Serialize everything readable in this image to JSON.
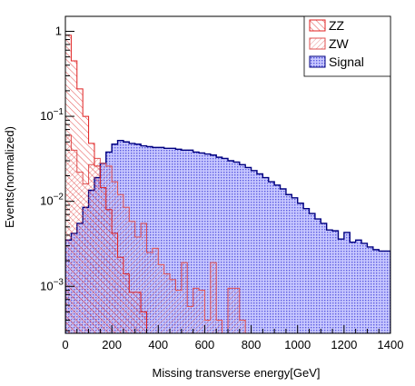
{
  "chart_data": {
    "type": "histogram",
    "title": "",
    "xlabel": "Missing transverse energy[GeV]",
    "ylabel": "Events(normalized)",
    "xlim": [
      0,
      1400
    ],
    "ylim": [
      0.00028,
      1.5
    ],
    "yscale": "log",
    "bin_width": 25,
    "bin_start": 0,
    "x_ticks": [
      0,
      200,
      400,
      600,
      800,
      1000,
      1200,
      1400
    ],
    "x_tick_labels": [
      "0",
      "200",
      "400",
      "600",
      "800",
      "1000",
      "1200",
      "1400"
    ],
    "y_ticks": [
      0.001,
      0.01,
      0.1,
      1
    ],
    "y_tick_labels": [
      {
        "base": "10",
        "exp": "−3"
      },
      {
        "base": "10",
        "exp": "−2"
      },
      {
        "base": "10",
        "exp": "−1"
      },
      {
        "base": "1",
        "exp": ""
      }
    ],
    "legend_position": "top-right",
    "series": [
      {
        "name": "Signal",
        "color": "#000080",
        "fill": "#7070ee",
        "hatch": "dots",
        "values": [
          0.0035,
          0.0042,
          0.0055,
          0.0085,
          0.0135,
          0.019,
          0.028,
          0.038,
          0.047,
          0.052,
          0.05,
          0.048,
          0.047,
          0.045,
          0.044,
          0.043,
          0.043,
          0.042,
          0.042,
          0.041,
          0.04,
          0.04,
          0.038,
          0.037,
          0.036,
          0.035,
          0.033,
          0.032,
          0.03,
          0.029,
          0.027,
          0.025,
          0.023,
          0.021,
          0.019,
          0.017,
          0.0155,
          0.014,
          0.012,
          0.011,
          0.0095,
          0.0082,
          0.0072,
          0.0062,
          0.0055,
          0.0046,
          0.0045,
          0.0036,
          0.0043,
          0.0033,
          0.0035,
          0.0032,
          0.0029,
          0.0027,
          0.0026,
          0.0026
        ]
      },
      {
        "name": "ZW",
        "color": "#e05050",
        "fill": "#e05050",
        "hatch": "diagonal-fine",
        "values": [
          0.06,
          0.04,
          0.022,
          0.016,
          0.027,
          0.032,
          0.028,
          0.026,
          0.017,
          0.012,
          0.0085,
          0.0058,
          0.0038,
          0.0055,
          0.0025,
          0.0028,
          0.0018,
          0.0014,
          0.0012,
          0.0009,
          0.0019,
          0.00058,
          0.00095,
          0.0009,
          0.0004,
          0.0019,
          0.0004,
          0.0002,
          0.00095,
          0.00095,
          0.0004,
          0.0002,
          0.0002,
          0.0002,
          0.0002,
          0.0002,
          0.0002,
          0.0002,
          0.0002,
          0.0002,
          0.0002,
          0.0002,
          0.0002,
          0.0002,
          0.0002,
          0.0002,
          0.0002,
          0.0002,
          0.0002,
          0.0002,
          0.0002,
          0.0002,
          0.0002,
          0.0002,
          0.0002,
          0.0002
        ]
      },
      {
        "name": "ZZ",
        "color": "#e02020",
        "fill": "#f08080",
        "hatch": "diagonal",
        "values": [
          0.9,
          0.45,
          0.21,
          0.1,
          0.048,
          0.026,
          0.0145,
          0.008,
          0.0042,
          0.0022,
          0.0014,
          0.00085,
          0.00085,
          0.0005,
          0.0002,
          0.0002,
          0.0002,
          0.0002,
          0.0002,
          0.0002,
          0.0002,
          0.0002,
          0.0002,
          0.0002,
          0.0002,
          0.0002,
          0.0002,
          0.0002,
          0.0002,
          0.0002,
          0.0002,
          0.0002,
          0.0002,
          0.0002,
          0.0002,
          0.0002,
          0.0002,
          0.0002,
          0.0002,
          0.0002,
          0.0002,
          0.0002,
          0.0002,
          0.0002,
          0.0002,
          0.0002,
          0.0002,
          0.0002,
          0.0002,
          0.0002,
          0.0002,
          0.0002,
          0.0002,
          0.0002,
          0.0002,
          0.0002
        ]
      }
    ],
    "legend_order": [
      "ZZ",
      "ZW",
      "Signal"
    ]
  }
}
